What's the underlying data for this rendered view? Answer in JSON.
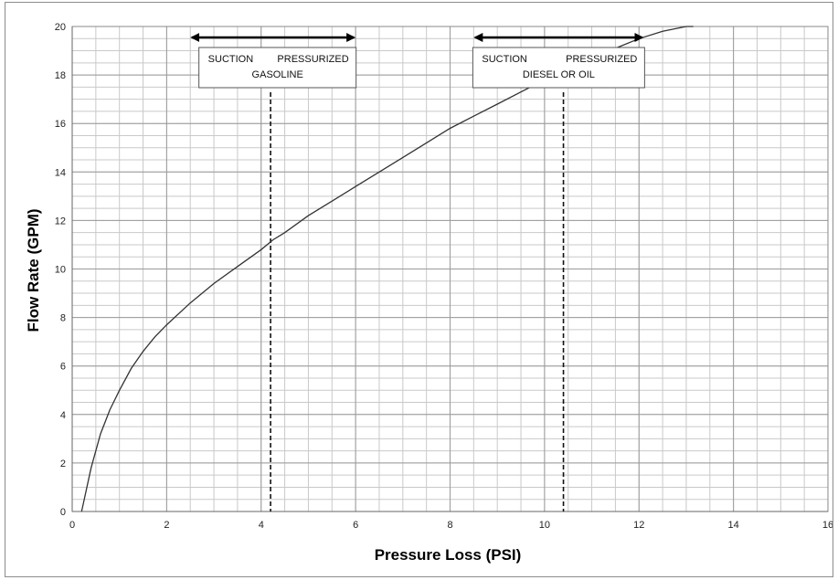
{
  "chart_data": {
    "type": "line",
    "title": "",
    "xlabel": "Pressure Loss (PSI)",
    "ylabel": "Flow Rate (GPM)",
    "xlim": [
      0,
      16
    ],
    "ylim": [
      0,
      20
    ],
    "x_ticks": [
      0,
      2,
      4,
      6,
      8,
      10,
      12,
      14,
      16
    ],
    "y_ticks": [
      0,
      2,
      4,
      6,
      8,
      10,
      12,
      14,
      16,
      18,
      20
    ],
    "x_tick_labels": [
      "0",
      "2",
      "4",
      "6",
      "8",
      "10",
      "12",
      "14",
      "16"
    ],
    "y_tick_labels": [
      "0",
      "2",
      "4",
      "6",
      "8",
      "10",
      "12",
      "14",
      "16",
      "18",
      "20"
    ],
    "grid": true,
    "legend": "none",
    "line_color": "#333333",
    "series": [
      {
        "x": [
          0.2,
          0.4,
          0.6,
          0.8,
          1.0,
          1.25,
          1.5,
          1.75,
          2.0,
          2.5,
          3.0,
          3.5,
          4.0,
          4.25,
          4.5,
          5.0,
          5.5,
          6.0,
          6.5,
          7.0,
          7.5,
          8.0,
          8.5,
          9.0,
          9.5,
          10.0,
          10.5,
          11.0,
          11.5,
          12.0,
          12.5,
          13.0,
          13.15
        ],
        "y": [
          0.0,
          1.8,
          3.2,
          4.2,
          5.0,
          5.9,
          6.6,
          7.2,
          7.7,
          8.6,
          9.4,
          10.1,
          10.8,
          11.2,
          11.5,
          12.2,
          12.8,
          13.4,
          14.0,
          14.6,
          15.2,
          15.8,
          16.3,
          16.8,
          17.3,
          17.8,
          18.3,
          18.7,
          19.1,
          19.5,
          19.8,
          20.0,
          20.1
        ]
      }
    ],
    "reference_lines": [
      {
        "x": 4.2,
        "style": "dashed"
      },
      {
        "x": 10.4,
        "style": "dashed"
      }
    ],
    "annotations": [
      {
        "line1_left": "SUCTION",
        "line1_right": "PRESSURIZED",
        "line2": "GASOLINE",
        "arrow_from": 2.5,
        "arrow_to": 6.0
      },
      {
        "line1_left": "SUCTION",
        "line1_right": "PRESSURIZED",
        "line2": "DIESEL OR OIL",
        "arrow_from": 8.5,
        "arrow_to": 12.1
      }
    ]
  }
}
